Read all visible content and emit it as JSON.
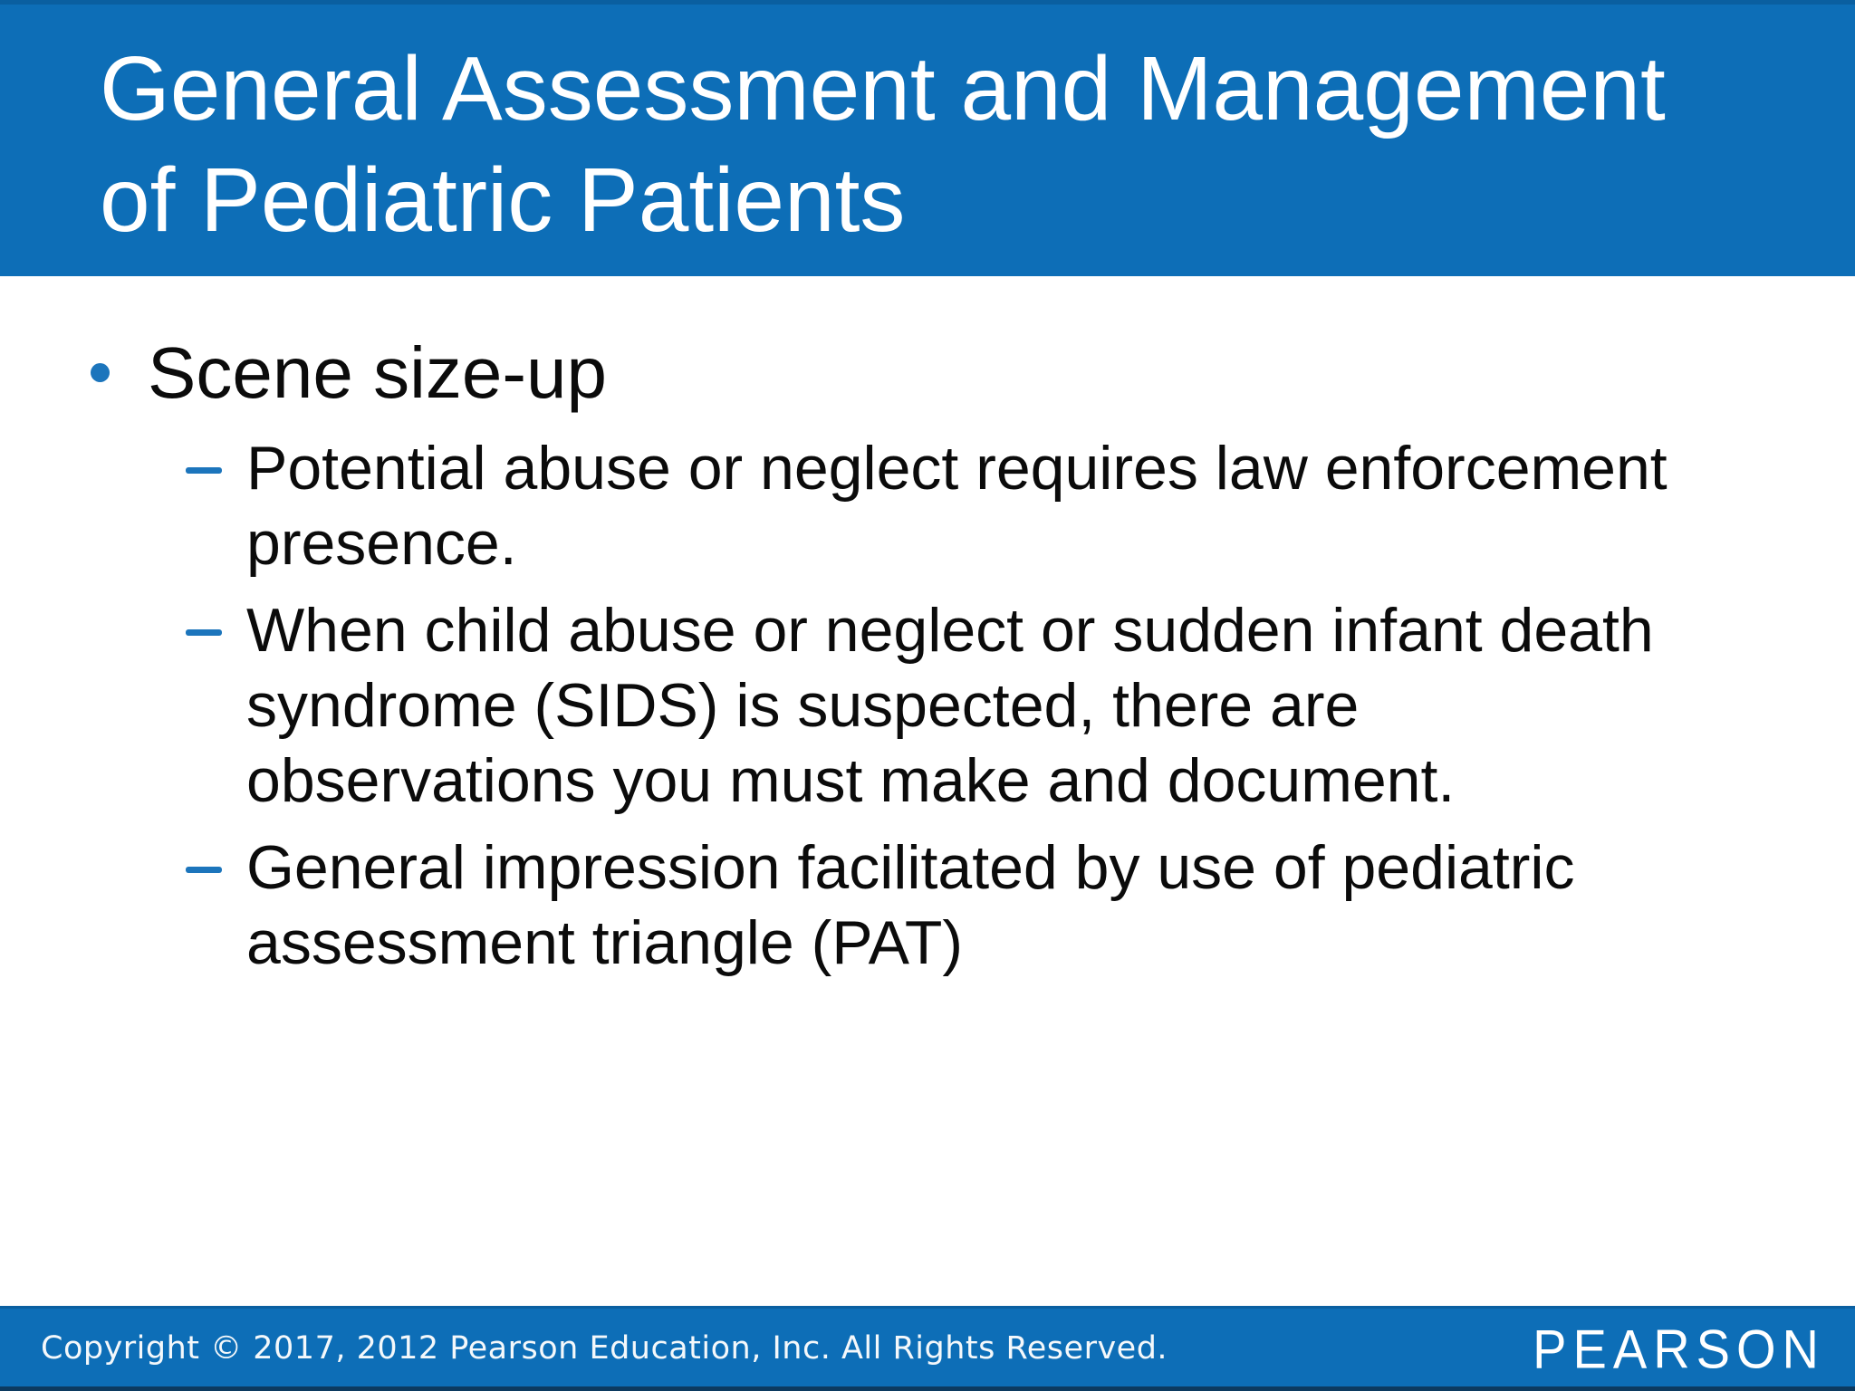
{
  "title": {
    "line1": "General Assessment and Management",
    "line2": "of Pediatric Patients"
  },
  "content": {
    "main_bullet": "Scene size-up",
    "sub_bullets": [
      "Potential abuse or neglect requires law enforcement presence.",
      "When child abuse or neglect or sudden infant death syndrome (SIDS) is suspected, there are observations you must make and document.",
      "General impression facilitated by use of pediatric assessment triangle (PAT)"
    ]
  },
  "footer": {
    "copyright": "Copyright © 2017, 2012 Pearson Education, Inc. All Rights Reserved.",
    "brand": "PEARSON"
  },
  "colors": {
    "header_bg": "#0D6EB7",
    "footer_bg": "#0D6EB7",
    "marker_blue": "#1C75BC",
    "title_text": "#FFFFFF",
    "body_text": "#0B0B0B"
  }
}
